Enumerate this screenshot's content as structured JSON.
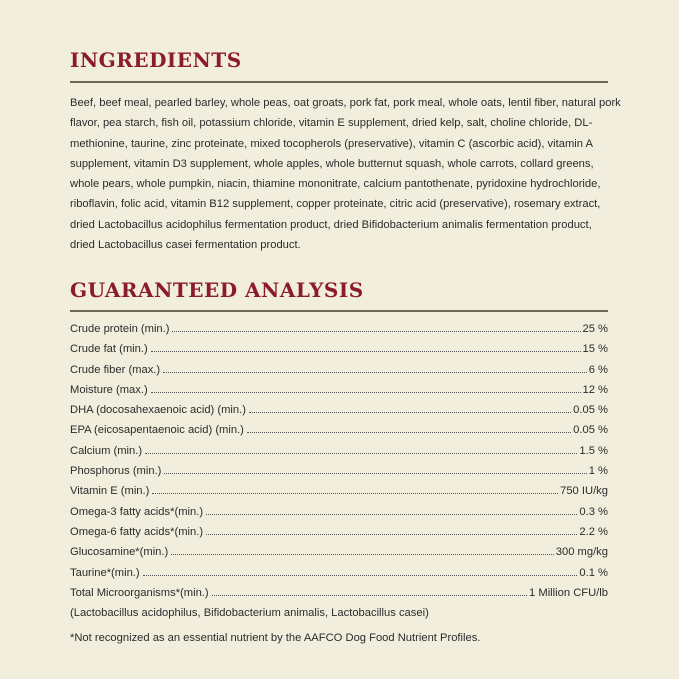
{
  "ingredients": {
    "title": "INGREDIENTS",
    "lines": [
      "Beef, beef meal, pearled barley, whole peas, oat groats, pork fat, pork meal, whole oats, lentil fiber, natural pork",
      "flavor, pea starch, fish oil, potassium chloride, vitamin E supplement, dried kelp, salt, choline chloride, DL-",
      "methionine, taurine, zinc proteinate, mixed tocopherols (preservative), vitamin C (ascorbic acid), vitamin A",
      "supplement, vitamin D3 supplement, whole apples, whole butternut squash, whole carrots, collard greens,",
      "whole pears, whole pumpkin, niacin, thiamine mononitrate, calcium pantothenate, pyridoxine hydrochloride,",
      "riboflavin, folic acid, vitamin B12 supplement, copper proteinate, citric acid (preservative), rosemary extract,",
      "dried Lactobacillus acidophilus fermentation product, dried Bifidobacterium animalis fermentation product,",
      "dried Lactobacillus casei fermentation product."
    ]
  },
  "analysis": {
    "title": "GUARANTEED ANALYSIS",
    "rows": [
      {
        "label": "Crude protein (min.)",
        "value": "25 %"
      },
      {
        "label": "Crude fat (min.)",
        "value": "15 %"
      },
      {
        "label": "Crude fiber (max.)",
        "value": "6 %"
      },
      {
        "label": "Moisture (max.)",
        "value": "12 %"
      },
      {
        "label": "DHA (docosahexaenoic acid) (min.)",
        "value": "0.05 %"
      },
      {
        "label": "EPA (eicosapentaenoic acid) (min.)",
        "value": "0.05 %"
      },
      {
        "label": "Calcium (min.)",
        "value": "1.5 %"
      },
      {
        "label": "Phosphorus (min.)",
        "value": "1 %"
      },
      {
        "label": "Vitamin E (min.)",
        "value": "750 IU/kg"
      },
      {
        "label": "Omega-3 fatty acids*(min.)",
        "value": "0.3 %"
      },
      {
        "label": "Omega-6 fatty acids*(min.)",
        "value": "2.2 %"
      },
      {
        "label": "Glucosamine*(min.)",
        "value": "300 mg/kg"
      },
      {
        "label": "Taurine*(min.)",
        "value": "0.1 %"
      },
      {
        "label": "Total Microorganisms*(min.)",
        "value": "1 Million CFU/lb"
      }
    ],
    "microorganisms_note": "(Lactobacillus acidophilus, Bifidobacterium animalis, Lactobacillus casei)",
    "footnote": "*Not recognized as an essential nutrient by the AAFCO Dog Food Nutrient Profiles."
  },
  "colors": {
    "background": "#f2eedd",
    "heading": "#8c1b2c",
    "rule": "#6c6957"
  }
}
